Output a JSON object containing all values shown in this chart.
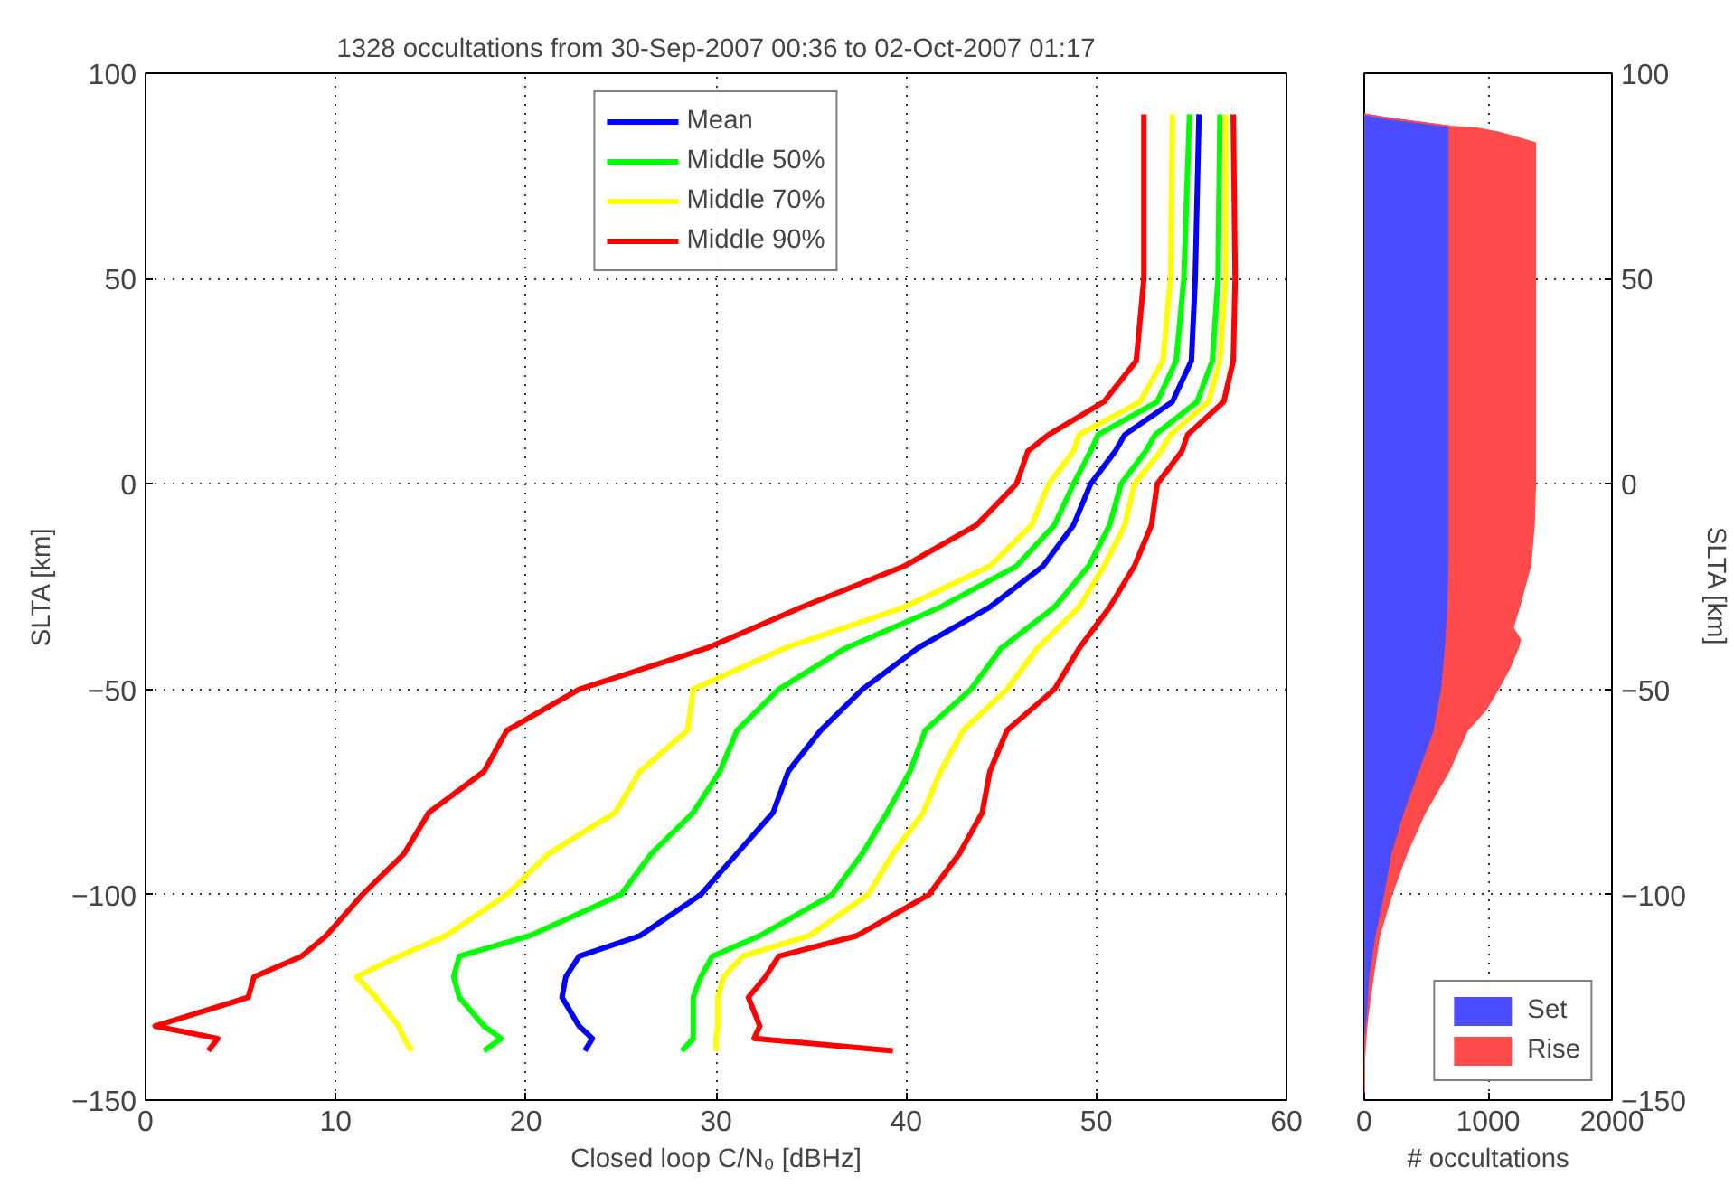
{
  "chart_data": [
    {
      "type": "line",
      "title": "1328 occultations from 30-Sep-2007 00:36 to 02-Oct-2007 01:17",
      "xlabel": "Closed loop C/N₀ [dBHz]",
      "ylabel": "SLTA [km]",
      "xlim": [
        0,
        60
      ],
      "xticks": [
        0,
        10,
        20,
        30,
        40,
        50,
        60
      ],
      "ylim": [
        -150,
        100
      ],
      "yticks": [
        -150,
        -100,
        -50,
        0,
        50,
        100
      ],
      "grid": true,
      "legend": "top",
      "line_style": "solid",
      "series": [
        {
          "name": "Mean",
          "color": "#0000ff",
          "x": [
            55.4,
            55.2,
            55.0,
            54.0,
            51.5,
            51.0,
            49.7,
            48.8,
            47.2,
            44.4,
            40.6,
            37.7,
            35.5,
            33.8,
            33.0,
            31.1,
            29.2,
            26.0,
            22.8,
            22.1,
            21.9,
            22.8,
            23.5,
            23.1
          ],
          "values": [
            90,
            50,
            30,
            20,
            12,
            8,
            0,
            -10,
            -20,
            -30,
            -40,
            -50,
            -60,
            -70,
            -80,
            -90,
            -100,
            -110,
            -115,
            -120,
            -125,
            -132,
            -135,
            -138
          ]
        },
        {
          "name": "Middle 50%",
          "color": "#00ff00",
          "x": [
            54.9,
            54.6,
            54.2,
            53.2,
            50.1,
            49.7,
            48.8,
            47.8,
            45.8,
            41.8,
            36.8,
            33.3,
            31.1,
            30.2,
            28.8,
            26.6,
            25.0,
            20.2,
            16.5,
            16.2,
            16.5,
            17.8,
            18.7,
            17.8
          ],
          "values": [
            90,
            50,
            30,
            20,
            12,
            8,
            0,
            -10,
            -20,
            -30,
            -40,
            -50,
            -60,
            -70,
            -80,
            -90,
            -100,
            -110,
            -115,
            -120,
            -125,
            -132,
            -135,
            -138
          ]
        },
        {
          "name": "Middle 70%",
          "color": "#ffff00",
          "x": [
            54.0,
            53.9,
            53.5,
            52.3,
            49.1,
            48.8,
            47.5,
            46.6,
            44.4,
            39.9,
            33.6,
            28.8,
            28.5,
            26.0,
            24.7,
            21.2,
            19.0,
            15.8,
            13.3,
            11.1,
            12.1,
            13.3,
            13.6,
            14.0
          ],
          "values": [
            90,
            50,
            30,
            20,
            12,
            8,
            0,
            -10,
            -20,
            -30,
            -40,
            -50,
            -60,
            -70,
            -80,
            -90,
            -100,
            -110,
            -115,
            -120,
            -125,
            -132,
            -135,
            -138
          ]
        },
        {
          "name": "Middle 90%",
          "color": "#ff0000",
          "x": [
            52.5,
            52.5,
            52.1,
            50.4,
            47.5,
            46.4,
            45.8,
            43.7,
            39.9,
            34.5,
            29.5,
            22.8,
            19.0,
            17.8,
            14.9,
            13.6,
            11.4,
            9.5,
            8.2,
            5.7,
            5.4,
            0.5,
            3.8,
            3.3
          ],
          "values": [
            90,
            50,
            30,
            20,
            12,
            8,
            0,
            -10,
            -20,
            -30,
            -40,
            -50,
            -60,
            -70,
            -80,
            -90,
            -100,
            -110,
            -115,
            -120,
            -125,
            -132,
            -135,
            -138
          ]
        },
        {
          "color": "#00ff00",
          "x": [
            56.5,
            56.4,
            56.1,
            55.3,
            53.1,
            52.6,
            51.3,
            50.7,
            49.6,
            47.8,
            45.0,
            43.4,
            41.0,
            40.2,
            39.0,
            37.7,
            36.1,
            32.3,
            29.8,
            29.2,
            28.8,
            28.8,
            28.8,
            28.2
          ],
          "values": [
            90,
            50,
            30,
            20,
            12,
            8,
            0,
            -10,
            -20,
            -30,
            -40,
            -50,
            -60,
            -70,
            -80,
            -90,
            -100,
            -110,
            -115,
            -120,
            -125,
            -132,
            -135,
            -138
          ]
        },
        {
          "color": "#ffff00",
          "x": [
            56.8,
            56.8,
            56.5,
            55.9,
            53.9,
            53.4,
            52.0,
            51.5,
            50.4,
            49.1,
            46.9,
            45.3,
            43.0,
            41.8,
            40.9,
            39.3,
            38.0,
            34.9,
            31.4,
            30.4,
            30.1,
            30.1,
            30.0,
            30.0
          ],
          "values": [
            90,
            50,
            30,
            20,
            12,
            8,
            0,
            -10,
            -20,
            -30,
            -40,
            -50,
            -60,
            -70,
            -80,
            -90,
            -100,
            -110,
            -115,
            -120,
            -125,
            -132,
            -135,
            -138
          ]
        },
        {
          "color": "#ff0000",
          "x": [
            57.2,
            57.3,
            57.2,
            56.7,
            54.8,
            54.5,
            53.2,
            52.9,
            52.0,
            50.7,
            49.1,
            47.8,
            45.3,
            44.4,
            44.0,
            42.8,
            41.2,
            37.4,
            33.3,
            32.6,
            31.7,
            32.3,
            32.0,
            39.3
          ],
          "values": [
            90,
            50,
            30,
            20,
            12,
            8,
            0,
            -10,
            -20,
            -30,
            -40,
            -50,
            -60,
            -70,
            -80,
            -90,
            -100,
            -110,
            -115,
            -120,
            -125,
            -132,
            -135,
            -138
          ]
        }
      ]
    },
    {
      "type": "area",
      "orientation": "horizontal",
      "stacked": true,
      "xlabel": "# occultations",
      "ylabel": "SLTA [km]",
      "xlim": [
        0,
        2000
      ],
      "xticks": [
        0,
        1000,
        2000
      ],
      "ylim": [
        -150,
        100
      ],
      "yticks": [
        -150,
        -100,
        -50,
        0,
        50,
        100
      ],
      "grid": true,
      "legend": "bottom right",
      "x": [
        90,
        89,
        88,
        87,
        86.5,
        85.5,
        83,
        50,
        0,
        -10,
        -20,
        -30,
        -35,
        -38,
        -40,
        -45,
        -50,
        -55,
        -60,
        -70,
        -80,
        -90,
        -100,
        -110,
        -120,
        -130,
        -135,
        -140,
        -150
      ],
      "series": [
        {
          "name": "Set",
          "color": "#4b4bff",
          "values": [
            0,
            200,
            450,
            680,
            680,
            680,
            680,
            680,
            680,
            680,
            680,
            670,
            660,
            655,
            650,
            635,
            620,
            590,
            560,
            440,
            320,
            220,
            160,
            90,
            40,
            20,
            0,
            0,
            0
          ]
        },
        {
          "name": "Rise",
          "color": "#ff4b4b",
          "values": [
            0,
            0,
            0,
            20,
            240,
            420,
            700,
            700,
            700,
            690,
            660,
            580,
            540,
            605,
            590,
            535,
            460,
            390,
            270,
            240,
            170,
            120,
            60,
            30,
            30,
            5,
            10,
            0,
            0
          ]
        }
      ]
    }
  ]
}
